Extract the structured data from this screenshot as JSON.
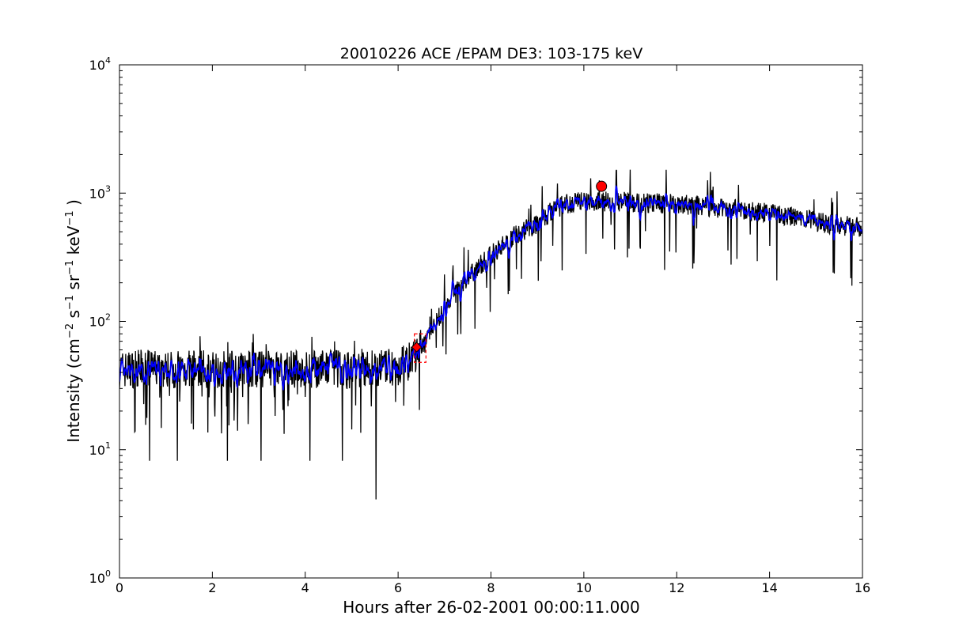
{
  "chart_data": {
    "type": "line",
    "title": "20010226 ACE /EPAM DE3: 103-175 keV",
    "xlabel": "Hours after 26-02-2001 00:00:11.000",
    "ylabel": {
      "prefix": "Intensity (cm",
      "parts": [
        {
          "sup": "−2",
          "text": " s"
        },
        {
          "sup": "−1",
          "text": " sr"
        },
        {
          "sup": "−1",
          "text": " keV"
        },
        {
          "sup": "−1",
          "text": " )"
        }
      ]
    },
    "xlim": [
      0,
      16
    ],
    "ylim": [
      1,
      10000
    ],
    "yscale": "log",
    "xticks": [
      0,
      2,
      4,
      6,
      8,
      10,
      12,
      14,
      16
    ],
    "xtick_labels": [
      "0",
      "2",
      "4",
      "6",
      "8",
      "10",
      "12",
      "14",
      "16"
    ],
    "yticks": [
      1,
      10,
      100,
      1000,
      10000
    ],
    "ytick_labels": [
      {
        "base": "10",
        "exp": "0"
      },
      {
        "base": "10",
        "exp": "1"
      },
      {
        "base": "10",
        "exp": "2"
      },
      {
        "base": "10",
        "exp": "3"
      },
      {
        "base": "10",
        "exp": "4"
      }
    ],
    "grid": false,
    "series": [
      {
        "role": "raw",
        "color": "#000000",
        "x": [
          0,
          0.5,
          1,
          1.5,
          2,
          2.5,
          3,
          3.5,
          4,
          4.5,
          5,
          5.5,
          6,
          6.3,
          6.6,
          6.9,
          7.2,
          7.5,
          8,
          8.5,
          9,
          9.3,
          9.6,
          10,
          10.5,
          11,
          11.5,
          12,
          12.5,
          13,
          13.5,
          14,
          14.5,
          15,
          15.5,
          16
        ],
        "values": [
          42,
          43,
          42,
          43,
          42,
          43,
          42,
          43,
          42,
          43,
          42,
          43,
          44,
          50,
          70,
          110,
          160,
          220,
          330,
          470,
          580,
          720,
          820,
          870,
          860,
          850,
          840,
          820,
          800,
          760,
          730,
          700,
          650,
          600,
          560,
          540
        ],
        "dips": [
          [
            0.65,
            8.2
          ],
          [
            1.25,
            8.2
          ],
          [
            2.32,
            8.2
          ],
          [
            3.05,
            8.2
          ],
          [
            4.1,
            8.2
          ],
          [
            4.8,
            8.2
          ],
          [
            5.52,
            4.1
          ]
        ]
      },
      {
        "role": "smoothed",
        "color": "#0000ff",
        "x": [
          0,
          0.5,
          1,
          1.5,
          2,
          2.5,
          3,
          3.5,
          4,
          4.5,
          5,
          5.5,
          6,
          6.3,
          6.6,
          6.9,
          7.2,
          7.5,
          8,
          8.5,
          9,
          9.3,
          9.6,
          10,
          10.5,
          11,
          11.5,
          12,
          12.5,
          13,
          13.5,
          14,
          14.5,
          15,
          15.5,
          16
        ],
        "values": [
          43,
          44,
          43,
          44,
          43,
          44,
          43,
          44,
          43,
          44,
          43,
          44,
          45,
          50,
          70,
          110,
          160,
          220,
          330,
          470,
          580,
          720,
          820,
          870,
          860,
          850,
          840,
          820,
          800,
          760,
          730,
          700,
          650,
          600,
          560,
          540
        ]
      }
    ],
    "markers": [
      {
        "shape": "circle",
        "x": 10.38,
        "y": 1130,
        "color": "#ff0000"
      },
      {
        "shape": "diamond",
        "x": 6.4,
        "y": 63,
        "color": "#ff0000"
      }
    ],
    "highlight_box": {
      "x0": 6.35,
      "x1": 6.6,
      "y0": 48,
      "y1": 80,
      "color": "#ff0000"
    }
  }
}
